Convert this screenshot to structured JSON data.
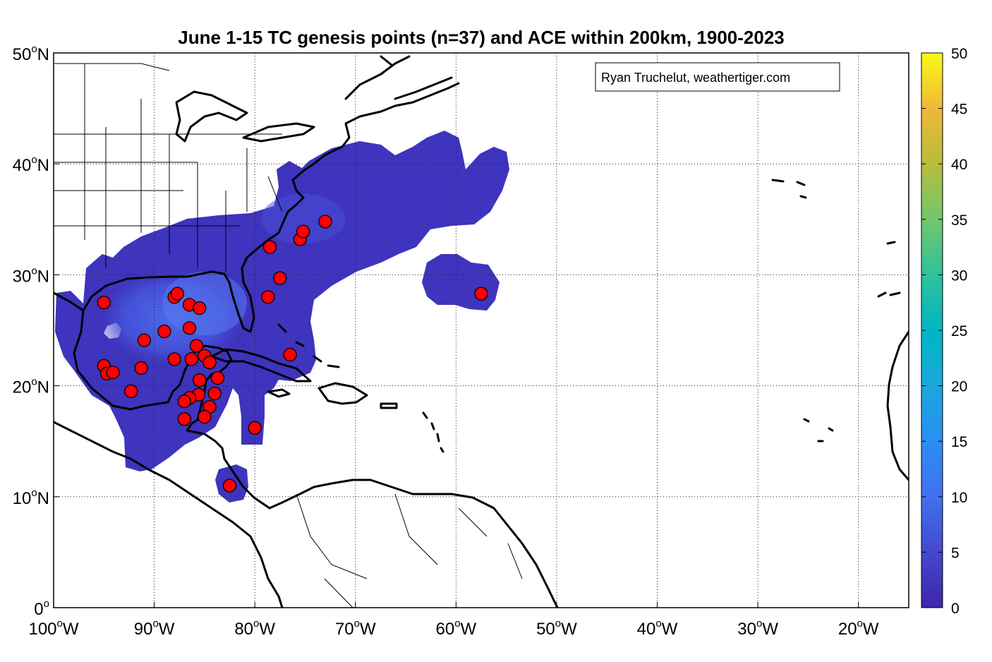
{
  "title": "June 1-15 TC genesis points (n=37) and ACE within 200km, 1900-2023",
  "credit": "Ryan Truchelut, weathertiger.com",
  "colors": {
    "ace_low": "#3e26a8",
    "ace_mid": "#4a56e8",
    "point_fill": "#ff0000",
    "point_stroke": "#000000",
    "land_outline": "#000000"
  },
  "map": {
    "lon_range": [
      -100,
      -15
    ],
    "lat_range": [
      0,
      50
    ],
    "x_ticks": [
      {
        "lon": -100,
        "num": "100",
        "hem": "W"
      },
      {
        "lon": -90,
        "num": "90",
        "hem": "W"
      },
      {
        "lon": -80,
        "num": "80",
        "hem": "W"
      },
      {
        "lon": -70,
        "num": "70",
        "hem": "W"
      },
      {
        "lon": -60,
        "num": "60",
        "hem": "W"
      },
      {
        "lon": -50,
        "num": "50",
        "hem": "W"
      },
      {
        "lon": -40,
        "num": "40",
        "hem": "W"
      },
      {
        "lon": -30,
        "num": "30",
        "hem": "W"
      },
      {
        "lon": -20,
        "num": "20",
        "hem": "W"
      }
    ],
    "y_ticks": [
      {
        "lat": 0,
        "num": "0",
        "hem": ""
      },
      {
        "lat": 10,
        "num": "10",
        "hem": "N"
      },
      {
        "lat": 20,
        "num": "20",
        "hem": "N"
      },
      {
        "lat": 30,
        "num": "30",
        "hem": "N"
      },
      {
        "lat": 40,
        "num": "40",
        "hem": "N"
      },
      {
        "lat": 50,
        "num": "50",
        "hem": "N"
      }
    ],
    "deg_symbol": "o"
  },
  "colorbar": {
    "min": 0,
    "max": 50,
    "ticks": [
      "0",
      "5",
      "10",
      "15",
      "20",
      "25",
      "30",
      "35",
      "40",
      "45",
      "50"
    ]
  },
  "genesis_points": [
    {
      "lon": -95.0,
      "lat": 27.5
    },
    {
      "lon": -88.0,
      "lat": 28.0
    },
    {
      "lon": -87.7,
      "lat": 28.3
    },
    {
      "lon": -86.5,
      "lat": 27.3
    },
    {
      "lon": -85.5,
      "lat": 27.0
    },
    {
      "lon": -89.0,
      "lat": 24.9
    },
    {
      "lon": -91.0,
      "lat": 24.1
    },
    {
      "lon": -86.5,
      "lat": 25.2
    },
    {
      "lon": -85.8,
      "lat": 23.6
    },
    {
      "lon": -85.0,
      "lat": 22.7
    },
    {
      "lon": -84.5,
      "lat": 22.1
    },
    {
      "lon": -86.3,
      "lat": 22.4
    },
    {
      "lon": -88.0,
      "lat": 22.4
    },
    {
      "lon": -91.3,
      "lat": 21.6
    },
    {
      "lon": -95.0,
      "lat": 21.8
    },
    {
      "lon": -94.7,
      "lat": 21.1
    },
    {
      "lon": -94.1,
      "lat": 21.2
    },
    {
      "lon": -92.3,
      "lat": 19.5
    },
    {
      "lon": -85.5,
      "lat": 20.5
    },
    {
      "lon": -83.7,
      "lat": 20.7
    },
    {
      "lon": -84.0,
      "lat": 19.3
    },
    {
      "lon": -85.6,
      "lat": 19.2
    },
    {
      "lon": -86.5,
      "lat": 18.9
    },
    {
      "lon": -87.0,
      "lat": 18.6
    },
    {
      "lon": -84.5,
      "lat": 18.1
    },
    {
      "lon": -85.0,
      "lat": 17.2
    },
    {
      "lon": -87.0,
      "lat": 17.0
    },
    {
      "lon": -82.5,
      "lat": 11.0
    },
    {
      "lon": -80.0,
      "lat": 16.2
    },
    {
      "lon": -78.7,
      "lat": 28.0
    },
    {
      "lon": -77.5,
      "lat": 29.7
    },
    {
      "lon": -78.5,
      "lat": 32.5
    },
    {
      "lon": -75.5,
      "lat": 33.2
    },
    {
      "lon": -75.2,
      "lat": 33.9
    },
    {
      "lon": -73.0,
      "lat": 34.8
    },
    {
      "lon": -76.5,
      "lat": 22.8
    },
    {
      "lon": -57.5,
      "lat": 28.3
    }
  ]
}
